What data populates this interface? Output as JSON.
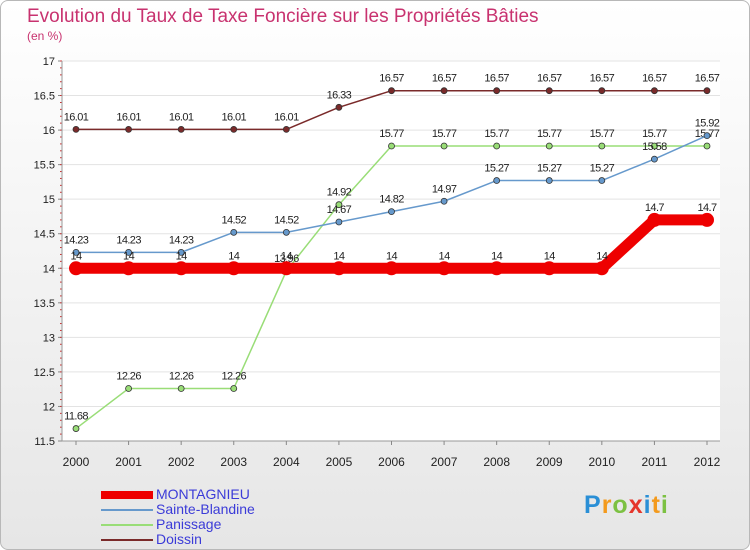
{
  "chart_data": {
    "type": "line",
    "title": "Evolution du Taux de Taxe Foncière sur les Propriétés Bâties",
    "ylabel": "(en %)",
    "xlabel": "",
    "ylim": [
      11.5,
      17
    ],
    "yticks": [
      "11.5",
      "12",
      "12.5",
      "13",
      "13.5",
      "14",
      "14.5",
      "15",
      "15.5",
      "16",
      "16.5",
      "17"
    ],
    "categories": [
      "2000",
      "2001",
      "2002",
      "2003",
      "2004",
      "2005",
      "2006",
      "2007",
      "2008",
      "2009",
      "2010",
      "2011",
      "2012"
    ],
    "series": [
      {
        "name": "Doissin",
        "color": "#7a2a2a",
        "values": [
          16.01,
          16.01,
          16.01,
          16.01,
          16.01,
          16.33,
          16.57,
          16.57,
          16.57,
          16.57,
          16.57,
          16.57,
          16.57
        ],
        "labels": [
          "16.01",
          "16.01",
          "16.01",
          "16.01",
          "16.01",
          "16.33",
          "16.57",
          "16.57",
          "16.57",
          "16.57",
          "16.57",
          "16.57",
          "16.57"
        ]
      },
      {
        "name": "Panissage",
        "color": "#99dd77",
        "values": [
          11.68,
          12.26,
          12.26,
          12.26,
          13.96,
          14.92,
          15.77,
          15.77,
          15.77,
          15.77,
          15.77,
          15.77,
          15.77
        ],
        "labels": [
          "11.68",
          "12.26",
          "12.26",
          "12.26",
          "13.96",
          "14.92",
          "15.77",
          "15.77",
          "15.77",
          "15.77",
          "15.77",
          "15.77",
          "15.77"
        ]
      },
      {
        "name": "Sainte-Blandine",
        "color": "#6699cc",
        "values": [
          14.23,
          14.23,
          14.23,
          14.52,
          14.52,
          14.67,
          14.82,
          14.97,
          15.27,
          15.27,
          15.27,
          15.58,
          15.92
        ],
        "labels": [
          "14.23",
          "14.23",
          "14.23",
          "14.52",
          "14.52",
          "14.67",
          "14.82",
          "14.97",
          "15.27",
          "15.27",
          "15.27",
          "15.58",
          "15.92"
        ]
      },
      {
        "name": "MONTAGNIEU",
        "color": "#ee0000",
        "values": [
          14,
          14,
          14,
          14,
          14,
          14,
          14,
          14,
          14,
          14,
          14,
          14.7,
          14.7
        ],
        "labels": [
          "14",
          "14",
          "14",
          "14",
          "14",
          "14",
          "14",
          "14",
          "14",
          "14",
          "14",
          "14.7",
          "14.7"
        ]
      }
    ],
    "legend": [
      {
        "name": "MONTAGNIEU",
        "color": "#ee0000"
      },
      {
        "name": "Sainte-Blandine",
        "color": "#6699cc"
      },
      {
        "name": "Panissage",
        "color": "#99dd77"
      },
      {
        "name": "Doissin",
        "color": "#7a2a2a"
      }
    ]
  },
  "logo": {
    "letters": [
      "P",
      "r",
      "o",
      "x",
      "i",
      "t",
      "i"
    ],
    "colors": [
      "#2a8fd6",
      "#f39a1d",
      "#7cc142",
      "#e5352b",
      "#2a8fd6",
      "#f39a1d",
      "#7cc142"
    ]
  }
}
